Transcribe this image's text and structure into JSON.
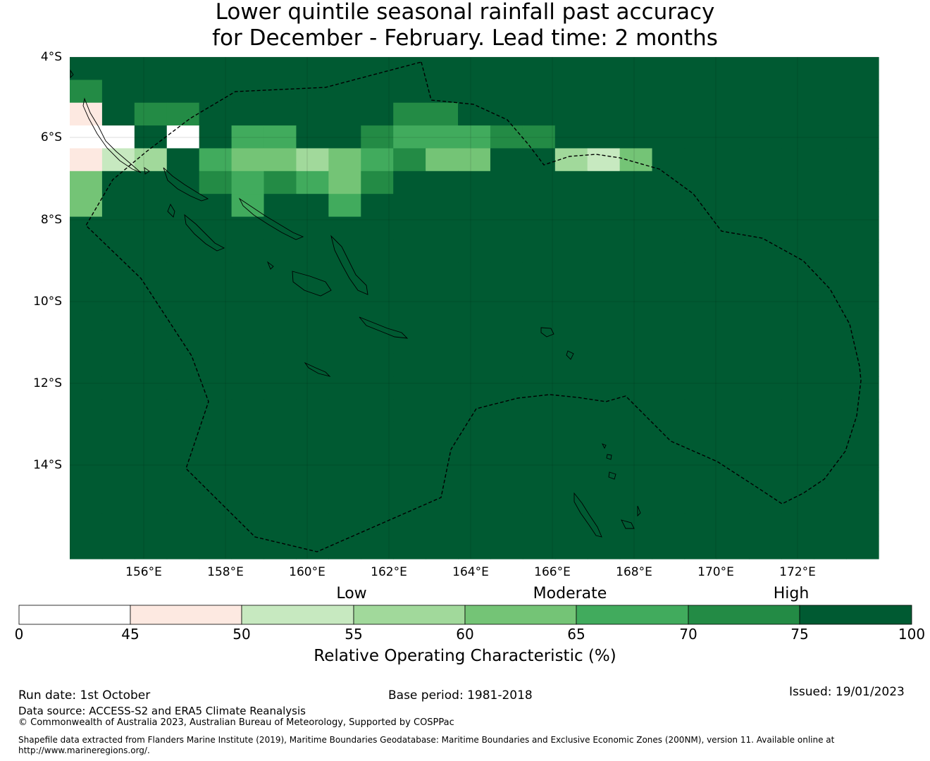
{
  "title": {
    "line1": "Lower quintile seasonal rainfall past accuracy",
    "line2": "for December - February. Lead time: 2 months"
  },
  "map": {
    "lat_labels": [
      "4°S",
      "6°S",
      "8°S",
      "10°S",
      "12°S",
      "14°S"
    ],
    "lon_labels": [
      "156°E",
      "158°E",
      "160°E",
      "162°E",
      "164°E",
      "166°E",
      "168°E",
      "170°E",
      "172°E"
    ],
    "palette": [
      "#ffffff",
      "#fde9e1",
      "#c7e9c0",
      "#a1d99b",
      "#74c476",
      "#41ab5d",
      "#238b45",
      "#005a32"
    ],
    "grid_rows": [
      "7777777777777777777777777",
      "6777777777777777777777777",
      "1766777777667777777777777",
      "0070755776555667777777777",
      "1237544345644773247777777",
      "4777656546777777777777777",
      "4777757757777777777777777",
      "7777777777777777777777777",
      "7777777777777777777777777",
      "7777777777777777777777777",
      "7777777777777777777777777",
      "7777777777777777777777777",
      "7777777777777777777777777",
      "7777777777777777777777777",
      "7777777777777777777777777",
      "7777777777777777777777777",
      "7777777777777777777777777",
      "7777777777777777777777777",
      "7777777777777777777777777",
      "7777777777777777777777777",
      "7777777777777777777777777",
      "7777777777777777777777777"
    ]
  },
  "colorbar": {
    "categories": [
      "Low",
      "Moderate",
      "High"
    ],
    "ticks": [
      "0",
      "45",
      "50",
      "55",
      "60",
      "65",
      "70",
      "75",
      "100"
    ],
    "colors": [
      "#ffffff",
      "#fde9e1",
      "#c7e9c0",
      "#a1d99b",
      "#74c476",
      "#41ab5d",
      "#238b45",
      "#005a32"
    ],
    "label": "Relative Operating Characteristic (%)"
  },
  "footer": {
    "run_date": "Run date: 1st October",
    "base_period": "Base period: 1981-2018",
    "issued": "Issued: 19/01/2023",
    "data_source": "Data source: ACCESS-S2 and ERA5 Climate Reanalysis",
    "copyright": "© Commonwealth of Australia 2023, Australian Bureau of Meteorology, Supported by COSPPac",
    "shapefile_line1": "Shapefile data extracted from Flanders Marine Institute (2019), Maritime Boundaries Geodatabase: Maritime Boundaries and Exclusive Economic Zones (200NM), version 11. Available online at",
    "shapefile_line2": "http://www.marineregions.org/."
  }
}
